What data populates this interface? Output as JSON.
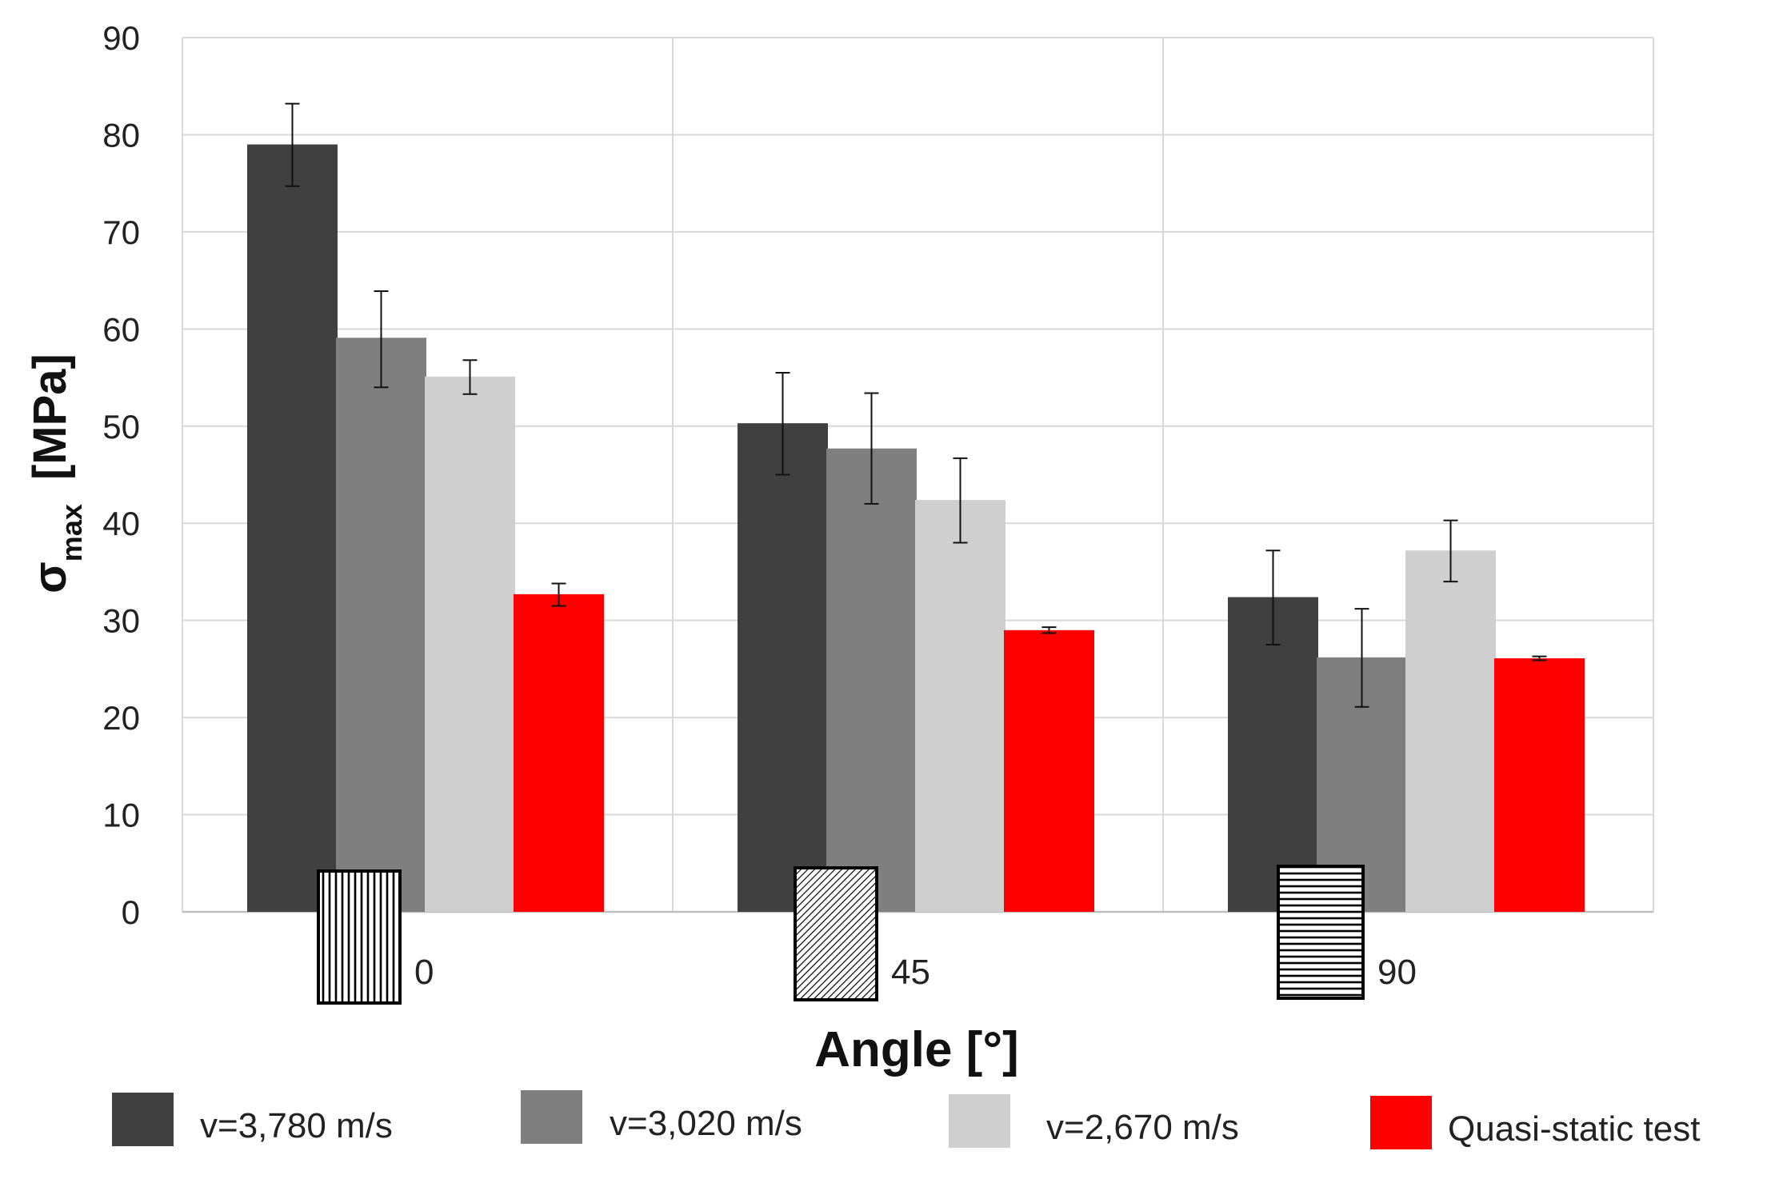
{
  "chart_data": {
    "type": "bar",
    "title": "",
    "xlabel": "Angle [°]",
    "ylabel_symbol": "σ",
    "ylabel_subscript": "max",
    "ylabel_unit": "[MPa]",
    "ylim": [
      0,
      90
    ],
    "yticks": [
      0,
      10,
      20,
      30,
      40,
      50,
      60,
      70,
      80,
      90
    ],
    "grid": true,
    "legend_position": "bottom",
    "categories": [
      "0",
      "45",
      "90"
    ],
    "series": [
      {
        "name": "v=3,780 m/s",
        "color": "#404040",
        "values": [
          79.0,
          50.3,
          32.4
        ],
        "err_low": [
          74.7,
          45.0,
          27.5
        ],
        "err_high": [
          83.2,
          55.5,
          37.2
        ]
      },
      {
        "name": "v=3,020 m/s",
        "color": "#7f7f7f",
        "values": [
          59.1,
          47.7,
          26.2
        ],
        "err_low": [
          54.0,
          42.0,
          21.1
        ],
        "err_high": [
          63.9,
          53.4,
          31.2
        ]
      },
      {
        "name": "v=2,670 m/s",
        "color": "#d0cfd0",
        "values": [
          55.1,
          42.4,
          37.2
        ],
        "err_low": [
          53.3,
          38.0,
          34.0
        ],
        "err_high": [
          56.8,
          46.7,
          40.3
        ]
      },
      {
        "name": "Quasi-static test",
        "color": "#ff0000",
        "values": [
          32.7,
          29.0,
          26.1
        ],
        "err_low": [
          31.5,
          28.7,
          25.9
        ],
        "err_high": [
          33.8,
          29.3,
          26.3
        ]
      }
    ],
    "fiber_pattern_icons": [
      "vertical-stripes-icon",
      "diagonal-hatch-icon",
      "horizontal-stripes-icon"
    ]
  }
}
